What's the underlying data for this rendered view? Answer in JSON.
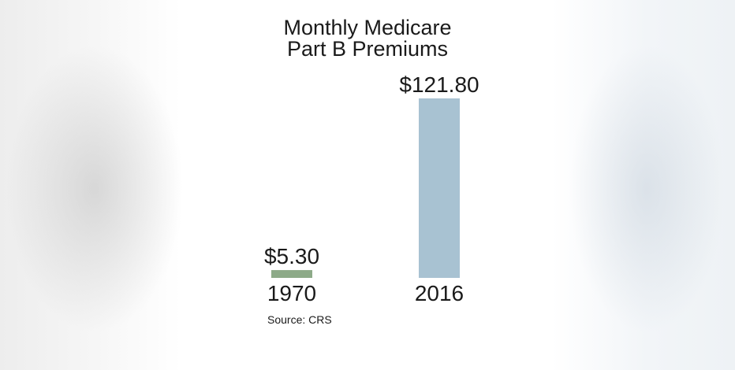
{
  "chart_data": {
    "type": "bar",
    "title_lines": [
      "Monthly Medicare",
      "Part B Premiums"
    ],
    "categories": [
      "1970",
      "2016"
    ],
    "values": [
      5.3,
      121.8
    ],
    "data_labels": [
      "$5.30",
      "$121.80"
    ],
    "colors": [
      "#8daa88",
      "#a8c2d2"
    ],
    "xlabel": "",
    "ylabel": "",
    "ylim": [
      0,
      121.8
    ],
    "grid": false,
    "legend": "none",
    "source": "Source:  CRS"
  }
}
